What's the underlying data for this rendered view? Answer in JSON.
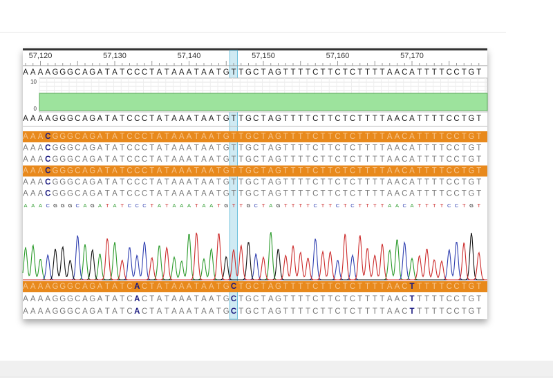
{
  "ruler": {
    "labels": [
      "57,120",
      "57,130",
      "57,140",
      "57,150",
      "57,160",
      "57,170"
    ]
  },
  "reference": "AAAAGGGCAGATATCCCTATAAATAATGTTGCTAGTTTTCTTCTCTTTTAACATTTTCCTGT",
  "coverage": {
    "max_label": "10",
    "min_label": "0"
  },
  "consensus": "AAAAGGGCAGATATCCCTATAAATAATGTTGCTAGTTTTCTTCTCTTTTAACATTTTCCTGT",
  "reads_top": [
    {
      "sequence": "AAACGGGCAGATATCCCTATAAATAATGTTGCTAGTTTTCTTCTCTTTTAACATTTTCCTGT",
      "selected": true
    },
    {
      "sequence": "AAACGGGCAGATATCCCTATAAATAATGTTGCTAGTTTTCTTCTCTTTTAACATTTTCCTGT",
      "selected": false
    },
    {
      "sequence": "AAACGGGCAGATATCCCTATAAATAATGTTGCTAGTTTTCTTCTCTTTTAACATTTTCCTGT",
      "selected": false
    },
    {
      "sequence": "AAACGGGCAGATATCCCTATAAATAATGTTGCTAGTTTTCTTCTCTTTTAACATTTTCCTGT",
      "selected": true
    },
    {
      "sequence": "AAACGGGCAGATATCCCTATAAATAATGTTGCTAGTTTTCTTCTCTTTTAACATTTTCCTGT",
      "selected": false
    },
    {
      "sequence": "AAACGGGCAGATATCCCTATAAATAATGTTGCTAGTTTTCTTCTCTTTTAACATTTTCCTGT",
      "selected": false
    }
  ],
  "basecalls": "AAACGGGCAGATATCCCTATAAATAATGTTGCTAGTTTTCTTCTCTTTTAACATTTTCCTGT",
  "reads_bottom": [
    {
      "sequence": "AAAAGGGCAGATATCACTATAAATAATGCTGCTAGTTTTCTTCTCTTTTAACTTTTTCCTGT",
      "selected": true
    },
    {
      "sequence": "AAAAGGGCAGATATCACTATAAATAATGCTGCTAGTTTTCTTCTCTTTTAACTTTTTCCTGT",
      "selected": false
    },
    {
      "sequence": "AAAAGGGCAGATATCACTATAAATAATGCTGCTAGTTTTCTTCTCTTTTAACTTTTTCCTGT",
      "selected": false
    }
  ]
}
